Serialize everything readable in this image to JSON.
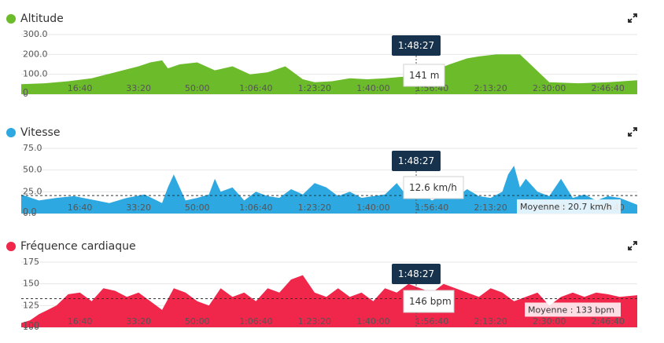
{
  "cursor_label": "1:48:27",
  "chart_data": [
    {
      "type": "area",
      "title": "Altitude",
      "color": "#6cbb2b",
      "y_ticks": [
        "300.0",
        "200.0",
        "100.0",
        "0"
      ],
      "ylim": [
        0,
        300
      ],
      "xlim": [
        0,
        10500
      ],
      "x_ticks": [
        "16:40",
        "33:20",
        "50:00",
        "1:06:40",
        "1:23:20",
        "1:40:00",
        "1:56:40",
        "2:13:20",
        "2:30:00",
        "2:46:40"
      ],
      "x": [
        0,
        400,
        800,
        1200,
        1600,
        2000,
        2200,
        2400,
        2500,
        2700,
        3000,
        3300,
        3600,
        3900,
        4200,
        4500,
        4800,
        5000,
        5300,
        5600,
        5900,
        6200,
        6600,
        7000,
        7300,
        7600,
        7800,
        8100,
        8500,
        9000,
        9500,
        10000,
        10500
      ],
      "y": [
        50,
        55,
        65,
        80,
        110,
        140,
        160,
        170,
        130,
        150,
        160,
        120,
        140,
        100,
        110,
        140,
        75,
        60,
        65,
        80,
        75,
        80,
        90,
        115,
        150,
        180,
        190,
        200,
        200,
        60,
        55,
        60,
        70
      ],
      "tooltip": "141 m"
    },
    {
      "type": "area",
      "title": "Vitesse",
      "color": "#2ea8e0",
      "y_ticks": [
        "75.0",
        "50.0",
        "25.0",
        "0.0"
      ],
      "ylim": [
        0,
        75
      ],
      "xlim": [
        0,
        10500
      ],
      "x_ticks": [
        "16:40",
        "33:20",
        "50:00",
        "1:06:40",
        "1:23:20",
        "1:40:00",
        "1:56:40",
        "2:13:20",
        "2:30:00",
        "2:46:40"
      ],
      "x": [
        0,
        300,
        600,
        900,
        1200,
        1500,
        1800,
        2100,
        2400,
        2500,
        2600,
        2800,
        3000,
        3200,
        3300,
        3400,
        3600,
        3800,
        4000,
        4200,
        4400,
        4600,
        4800,
        5000,
        5200,
        5400,
        5600,
        5800,
        6000,
        6200,
        6400,
        6600,
        6800,
        7000,
        7200,
        7400,
        7600,
        7800,
        8000,
        8200,
        8300,
        8400,
        8500,
        8600,
        8800,
        9000,
        9200,
        9400,
        9600,
        9800,
        10000,
        10200,
        10500
      ],
      "y": [
        22,
        15,
        18,
        20,
        16,
        12,
        18,
        22,
        12,
        30,
        45,
        15,
        18,
        22,
        40,
        25,
        30,
        15,
        25,
        20,
        18,
        28,
        22,
        35,
        30,
        20,
        25,
        18,
        20,
        22,
        35,
        18,
        25,
        15,
        22,
        18,
        28,
        20,
        18,
        25,
        45,
        55,
        30,
        40,
        25,
        20,
        40,
        18,
        22,
        15,
        20,
        18,
        10
      ],
      "avg_line": 20.7,
      "avg_label": "Moyenne : 20.7 km/h",
      "tooltip": "12.6 km/h"
    },
    {
      "type": "area",
      "title": "Fréquence cardiaque",
      "color": "#f0264a",
      "y_ticks": [
        "175",
        "150",
        "125",
        "100"
      ],
      "ylim": [
        100,
        175
      ],
      "xlim": [
        0,
        10500
      ],
      "x_ticks": [
        "16:40",
        "33:20",
        "50:00",
        "1:06:40",
        "1:23:20",
        "1:40:00",
        "1:56:40",
        "2:13:20",
        "2:30:00",
        "2:46:40"
      ],
      "x": [
        0,
        150,
        300,
        450,
        600,
        800,
        1000,
        1200,
        1400,
        1600,
        1800,
        2000,
        2200,
        2400,
        2600,
        2800,
        3000,
        3200,
        3400,
        3600,
        3800,
        4000,
        4200,
        4400,
        4600,
        4800,
        5000,
        5200,
        5400,
        5600,
        5800,
        6000,
        6200,
        6400,
        6600,
        6800,
        7000,
        7200,
        7400,
        7600,
        7800,
        8000,
        8200,
        8400,
        8600,
        8800,
        9000,
        9200,
        9400,
        9600,
        9800,
        10000,
        10200,
        10500
      ],
      "y": [
        105,
        108,
        115,
        120,
        125,
        138,
        140,
        130,
        145,
        142,
        135,
        140,
        130,
        120,
        145,
        140,
        130,
        125,
        145,
        135,
        140,
        130,
        145,
        140,
        155,
        160,
        140,
        135,
        145,
        135,
        140,
        130,
        145,
        140,
        150,
        145,
        140,
        150,
        145,
        140,
        135,
        145,
        140,
        130,
        135,
        140,
        125,
        135,
        140,
        135,
        140,
        138,
        135,
        137
      ],
      "avg_line": 133,
      "avg_label": "Moyenne : 133 bpm",
      "tooltip": "146 bpm"
    }
  ]
}
